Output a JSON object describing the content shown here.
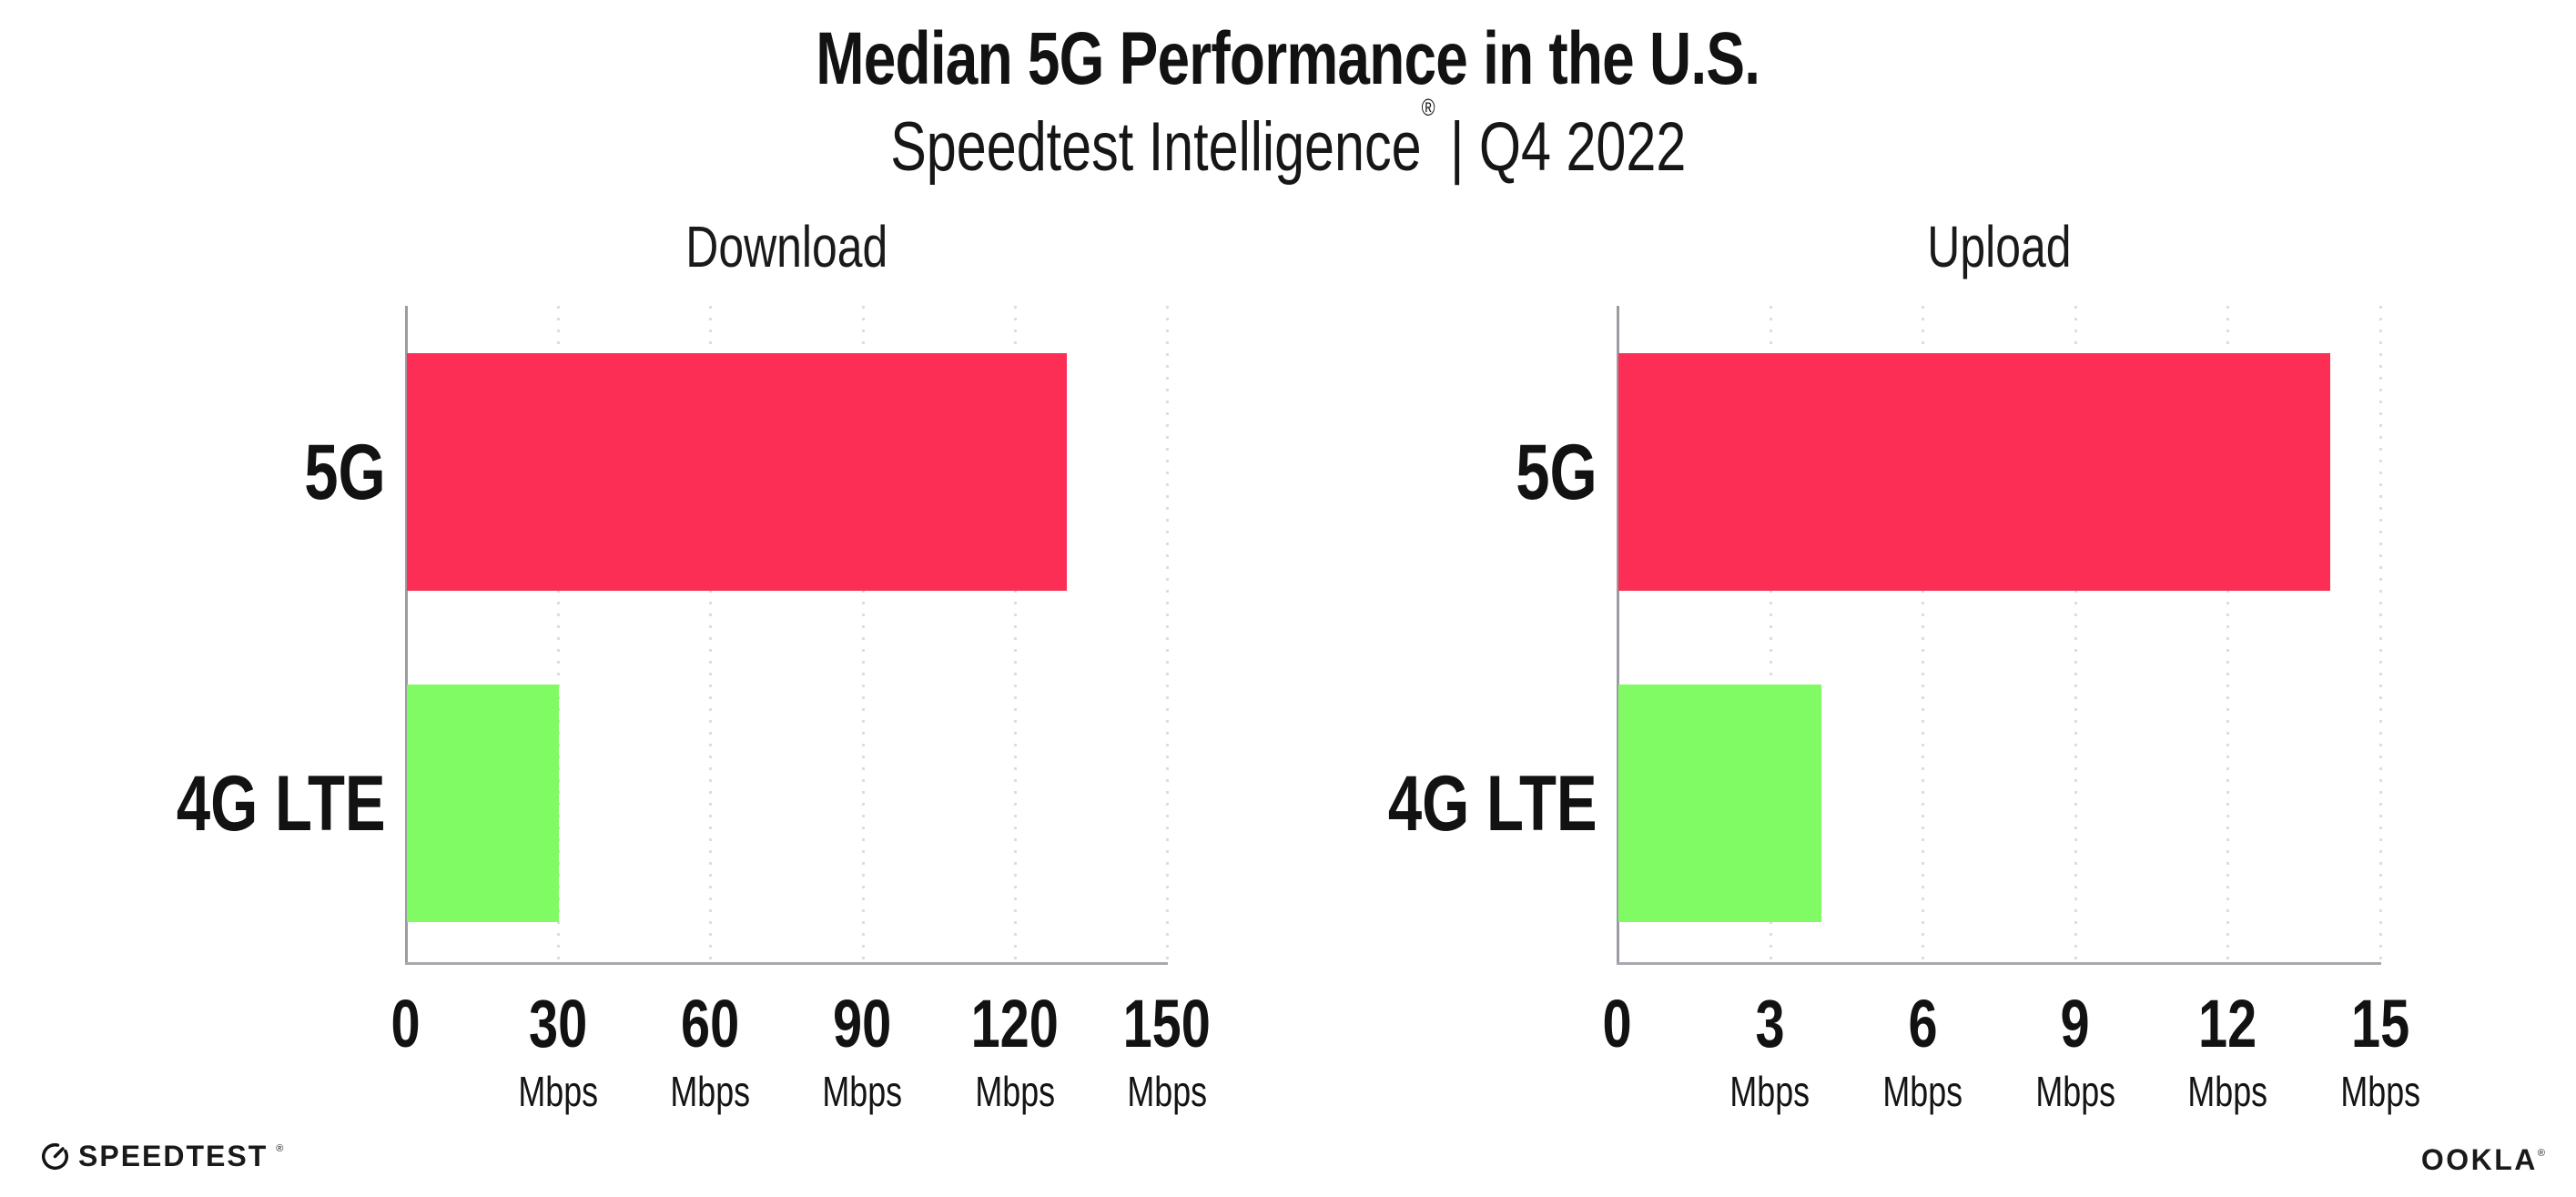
{
  "header": {
    "title": "Median 5G Performance in the U.S.",
    "subtitle_product": "Speedtest Intelligence",
    "subtitle_mark": "®",
    "subtitle_period": " | Q4 2022"
  },
  "colors": {
    "bar_5g": "#fc2e56",
    "bar_4g_lte": "#81fb63",
    "gridline": "#dcdce6",
    "axis": "#a0a0a7",
    "text": "#121212"
  },
  "chart_data": [
    {
      "type": "bar",
      "orientation": "horizontal",
      "title": "Download",
      "categories": [
        "5G",
        "4G LTE"
      ],
      "values": [
        130,
        30
      ],
      "unit": "Mbps",
      "xlim": [
        0,
        150
      ],
      "xticks": [
        0,
        30,
        60,
        90,
        120,
        150
      ],
      "unit_on_zero_tick": false,
      "grid": "dotted-vertical",
      "legend": "none",
      "bar_colors": [
        "#fc2e56",
        "#81fb63"
      ]
    },
    {
      "type": "bar",
      "orientation": "horizontal",
      "title": "Upload",
      "categories": [
        "5G",
        "4G LTE"
      ],
      "values": [
        14,
        4
      ],
      "unit": "Mbps",
      "xlim": [
        0,
        15
      ],
      "xticks": [
        0,
        3,
        6,
        9,
        12,
        15
      ],
      "unit_on_zero_tick": false,
      "grid": "dotted-vertical",
      "legend": "none",
      "bar_colors": [
        "#fc2e56",
        "#81fb63"
      ]
    }
  ],
  "footer": {
    "speedtest_label": "SPEEDTEST",
    "speedtest_mark": "®",
    "speedtest_icon": "gauge-icon",
    "ookla_label": "OOKLA",
    "ookla_mark": "®"
  }
}
